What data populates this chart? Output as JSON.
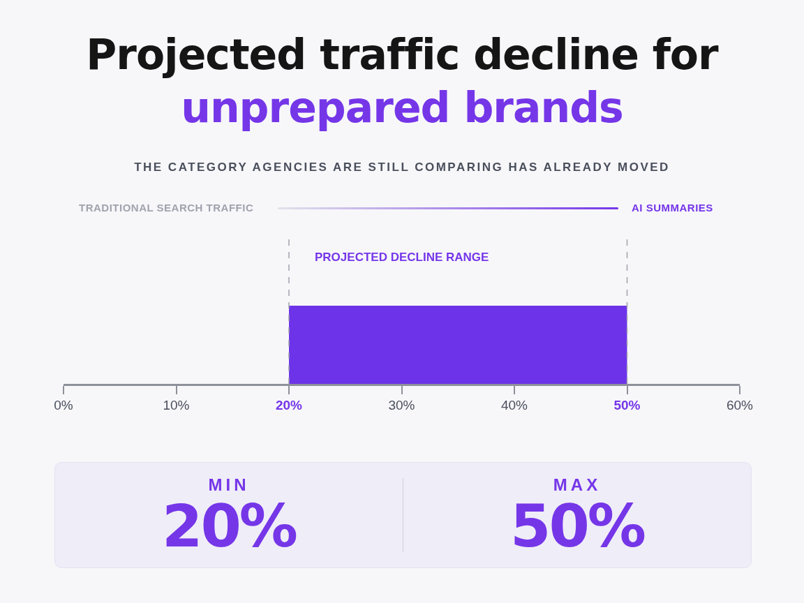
{
  "chart_data": {
    "type": "bar",
    "orientation": "horizontal",
    "title": "Projected traffic decline for unprepared brands",
    "subtitle": "THE CATEGORY AGENCIES ARE STILL COMPARING HAS ALREADY MOVED",
    "categories": [
      null
    ],
    "values": [
      30
    ],
    "base": [
      20
    ],
    "color": "#6d33e8",
    "xlim": [
      0,
      60
    ],
    "xticks": [
      {
        "value": 0,
        "label": "0%"
      },
      {
        "value": 10,
        "label": "10%"
      },
      {
        "value": 20,
        "label": "20%"
      },
      {
        "value": 30,
        "label": "30%"
      },
      {
        "value": 40,
        "label": "40%"
      },
      {
        "value": 50,
        "label": "50%"
      },
      {
        "value": 60,
        "label": "60%"
      }
    ],
    "ref_lines": [
      {
        "axis": "x",
        "value": 20,
        "label": null,
        "line_style": "dashed",
        "color": "#a0a3ad"
      },
      {
        "axis": "x",
        "value": 50,
        "label": null,
        "line_style": "dashed",
        "color": "#a0a3ad"
      }
    ],
    "annotations": [
      "TRADITIONAL SEARCH TRAFFIC",
      "AI SUMMARIES",
      "PROJECTED DECLINE RANGE",
      "MIN",
      "20%",
      "MAX",
      "50%"
    ],
    "grid": false,
    "legend": false
  }
}
